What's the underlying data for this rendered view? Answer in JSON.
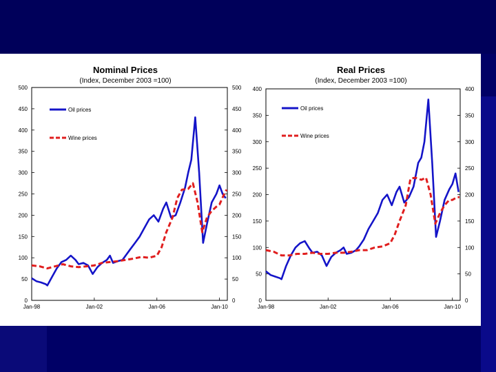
{
  "colors": {
    "oil": "#1414c8",
    "wine": "#e01e1e",
    "axis": "#000000"
  },
  "chart_data": [
    {
      "type": "line",
      "title": "Nominal Prices",
      "subtitle": "(Index, December 2003 =100)",
      "xlabel": "",
      "ylabel": "",
      "xlim": [
        1998.0,
        2010.5
      ],
      "ylim": [
        0,
        500
      ],
      "yticks": [
        0,
        50,
        100,
        150,
        200,
        250,
        300,
        350,
        400,
        450,
        500
      ],
      "xticks": [
        {
          "value": 1998.0,
          "label": "Jan-98"
        },
        {
          "value": 2002.0,
          "label": "Jan-02"
        },
        {
          "value": 2006.0,
          "label": "Jan-06"
        },
        {
          "value": 2010.0,
          "label": "Jan-10"
        }
      ],
      "series": [
        {
          "name": "Oil prices",
          "style": "solid",
          "x": [
            1998.0,
            1998.3,
            1998.6,
            1998.9,
            1999.0,
            1999.3,
            1999.6,
            1999.9,
            2000.2,
            2000.5,
            2000.8,
            2001.0,
            2001.3,
            2001.6,
            2001.9,
            2002.2,
            2002.5,
            2002.8,
            2003.0,
            2003.2,
            2003.5,
            2003.8,
            2004.0,
            2004.3,
            2004.6,
            2004.9,
            2005.2,
            2005.5,
            2005.8,
            2006.1,
            2006.4,
            2006.6,
            2006.9,
            2007.2,
            2007.5,
            2007.8,
            2008.0,
            2008.2,
            2008.45,
            2008.7,
            2008.95,
            2009.2,
            2009.5,
            2009.8,
            2010.0,
            2010.2,
            2010.4
          ],
          "y": [
            52,
            45,
            42,
            38,
            35,
            55,
            75,
            90,
            95,
            105,
            95,
            85,
            88,
            82,
            62,
            78,
            88,
            95,
            105,
            88,
            92,
            95,
            105,
            120,
            135,
            150,
            170,
            190,
            200,
            185,
            215,
            230,
            195,
            200,
            230,
            265,
            300,
            330,
            430,
            300,
            135,
            180,
            230,
            250,
            270,
            250,
            240
          ]
        },
        {
          "name": "Wine prices",
          "style": "dashed",
          "x": [
            1998.0,
            1998.5,
            1999.0,
            1999.5,
            2000.0,
            2000.5,
            2001.0,
            2001.5,
            2002.0,
            2002.5,
            2003.0,
            2003.5,
            2004.0,
            2004.5,
            2005.0,
            2005.5,
            2006.0,
            2006.3,
            2006.6,
            2007.0,
            2007.3,
            2007.6,
            2008.0,
            2008.3,
            2008.6,
            2008.9,
            2009.2,
            2009.5,
            2009.8,
            2010.0,
            2010.3,
            2010.45
          ],
          "y": [
            82,
            80,
            75,
            80,
            85,
            80,
            78,
            80,
            82,
            88,
            90,
            92,
            95,
            98,
            102,
            100,
            105,
            125,
            160,
            195,
            240,
            260,
            262,
            275,
            230,
            160,
            195,
            210,
            220,
            225,
            250,
            260
          ]
        }
      ]
    },
    {
      "type": "line",
      "title": "Real Prices",
      "subtitle": "(Index, December 2003 =100)",
      "xlabel": "",
      "ylabel": "",
      "xlim": [
        1998.0,
        2010.5
      ],
      "ylim": [
        0,
        400
      ],
      "yticks": [
        0,
        50,
        100,
        150,
        200,
        250,
        300,
        350,
        400
      ],
      "xticks": [
        {
          "value": 1998.0,
          "label": "Jan-98"
        },
        {
          "value": 2002.0,
          "label": "Jan-02"
        },
        {
          "value": 2006.0,
          "label": "Jan-06"
        },
        {
          "value": 2010.0,
          "label": "Jan-10"
        }
      ],
      "series": [
        {
          "name": "Oil prices",
          "style": "solid",
          "x": [
            1998.0,
            1998.3,
            1998.6,
            1998.9,
            1999.0,
            1999.3,
            1999.6,
            1999.9,
            2000.2,
            2000.5,
            2000.8,
            2001.0,
            2001.3,
            2001.6,
            2001.9,
            2002.2,
            2002.5,
            2002.8,
            2003.0,
            2003.2,
            2003.5,
            2003.8,
            2004.0,
            2004.3,
            2004.6,
            2004.9,
            2005.2,
            2005.5,
            2005.8,
            2006.1,
            2006.4,
            2006.6,
            2006.9,
            2007.2,
            2007.5,
            2007.8,
            2008.0,
            2008.2,
            2008.45,
            2008.7,
            2008.95,
            2009.2,
            2009.5,
            2009.8,
            2010.0,
            2010.2,
            2010.4
          ],
          "y": [
            55,
            48,
            45,
            42,
            40,
            65,
            85,
            100,
            108,
            112,
            98,
            90,
            92,
            85,
            65,
            82,
            90,
            95,
            100,
            88,
            90,
            95,
            102,
            115,
            135,
            150,
            165,
            190,
            200,
            180,
            205,
            215,
            185,
            195,
            215,
            260,
            270,
            300,
            380,
            260,
            120,
            150,
            190,
            210,
            220,
            240,
            205
          ]
        },
        {
          "name": "Wine prices",
          "style": "dashed",
          "x": [
            1998.0,
            1998.5,
            1999.0,
            1999.5,
            2000.0,
            2000.5,
            2001.0,
            2001.5,
            2002.0,
            2002.5,
            2003.0,
            2003.5,
            2004.0,
            2004.5,
            2005.0,
            2005.5,
            2006.0,
            2006.3,
            2006.6,
            2007.0,
            2007.3,
            2007.6,
            2008.0,
            2008.3,
            2008.6,
            2008.9,
            2009.2,
            2009.5,
            2009.8,
            2010.0,
            2010.3,
            2010.45
          ],
          "y": [
            95,
            92,
            85,
            85,
            88,
            88,
            90,
            88,
            88,
            90,
            90,
            92,
            95,
            95,
            100,
            102,
            108,
            125,
            150,
            180,
            230,
            232,
            228,
            232,
            200,
            145,
            165,
            180,
            190,
            190,
            195,
            195
          ]
        }
      ]
    }
  ]
}
